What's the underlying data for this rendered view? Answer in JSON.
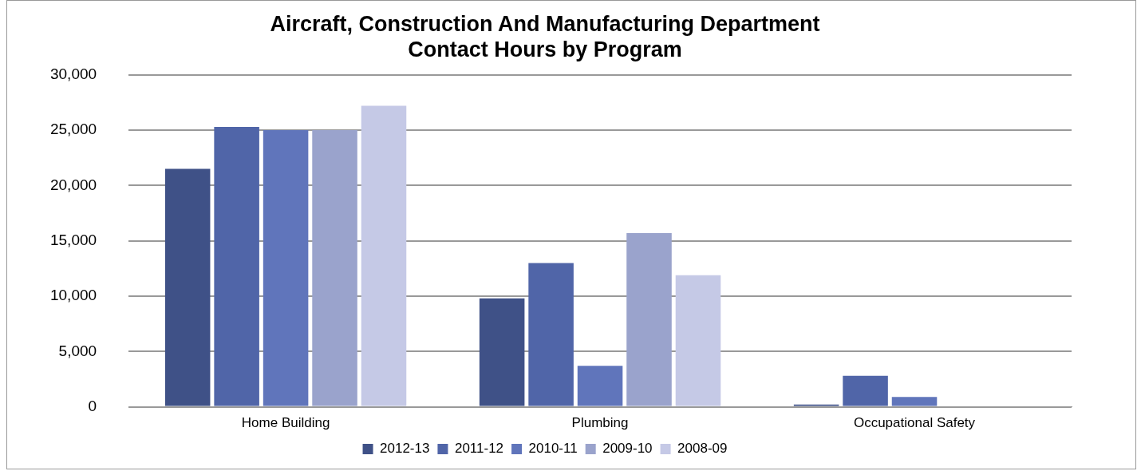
{
  "chart_data": {
    "type": "bar",
    "title": [
      "Aircraft, Construction And Manufacturing Department",
      "Contact Hours by Program"
    ],
    "categories": [
      "Home Building",
      "Plumbing",
      "Occupational Safety"
    ],
    "series": [
      {
        "name": "2012-13",
        "color": "#3f5187",
        "values": [
          21500,
          9800,
          200
        ]
      },
      {
        "name": "2011-12",
        "color": "#5065a8",
        "values": [
          25300,
          13000,
          2800
        ]
      },
      {
        "name": "2010-11",
        "color": "#6075bb",
        "values": [
          25000,
          3700,
          900
        ]
      },
      {
        "name": "2009-10",
        "color": "#9aa3cc",
        "values": [
          25000,
          15700,
          null
        ]
      },
      {
        "name": "2008-09",
        "color": "#c5c9e6",
        "values": [
          27200,
          11900,
          null
        ]
      }
    ],
    "ylim": [
      0,
      30000
    ],
    "yticks": [
      {
        "value": 0,
        "label": "0"
      },
      {
        "value": 5000,
        "label": "5,000"
      },
      {
        "value": 10000,
        "label": "10,000"
      },
      {
        "value": 15000,
        "label": "15,000"
      },
      {
        "value": 20000,
        "label": "20,000"
      },
      {
        "value": 25000,
        "label": "25,000"
      },
      {
        "value": 30000,
        "label": "30,000"
      }
    ],
    "grid": "y",
    "legend": "bottom"
  }
}
